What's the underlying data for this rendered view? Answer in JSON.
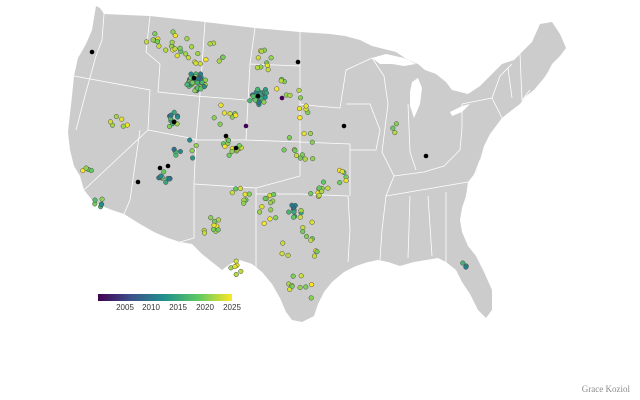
{
  "map": {
    "land_color": "#cccccc",
    "border_color": "#ffffff",
    "undated_color": "#000000",
    "point_stroke": "#4a4a4a",
    "palette": "viridis"
  },
  "legend": {
    "domain": [
      2000,
      2025
    ],
    "ticks": [
      "2005",
      "2010",
      "2015",
      "2020",
      "2025"
    ]
  },
  "credit": "Grace Koziol"
}
